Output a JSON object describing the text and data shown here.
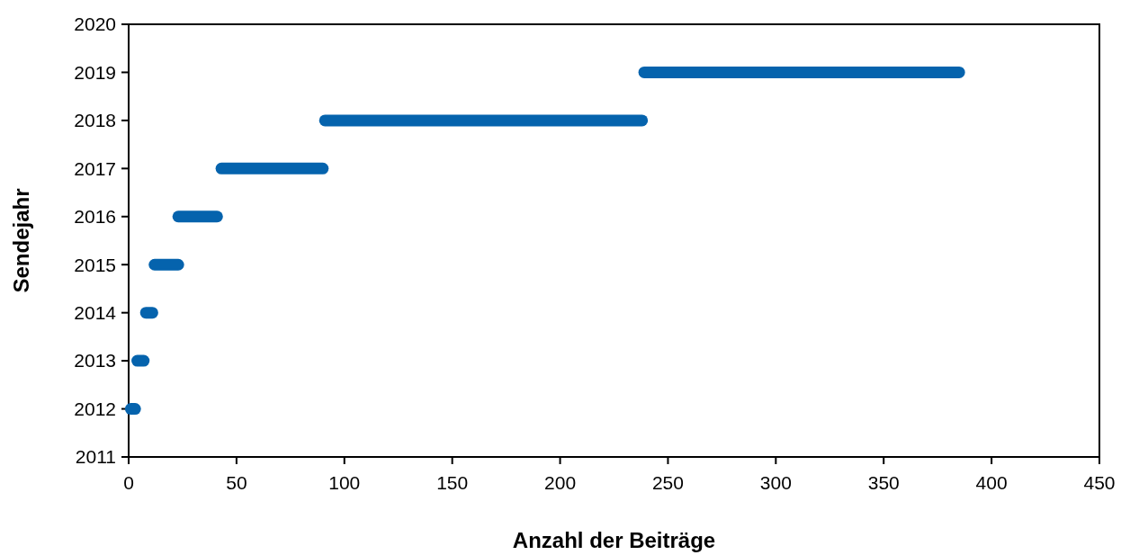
{
  "chart_data": {
    "type": "line",
    "xlabel": "Anzahl der Beiträge",
    "ylabel": "Sendejahr",
    "xlim": [
      0,
      450
    ],
    "xticks": [
      0,
      50,
      100,
      150,
      200,
      250,
      300,
      350,
      400,
      450
    ],
    "ylim": [
      2011,
      2020
    ],
    "yticks": [
      2011,
      2012,
      2013,
      2014,
      2015,
      2016,
      2017,
      2018,
      2019,
      2020
    ],
    "grid": false,
    "line_style": "solid",
    "series": [
      {
        "color": "#0563ad",
        "x": [
          1,
          3
        ],
        "values": [
          2012,
          2012
        ]
      },
      {
        "color": "#0563ad",
        "x": [
          4,
          7
        ],
        "values": [
          2013,
          2013
        ]
      },
      {
        "color": "#0563ad",
        "x": [
          8,
          11
        ],
        "values": [
          2014,
          2014
        ]
      },
      {
        "color": "#0563ad",
        "x": [
          12,
          23
        ],
        "values": [
          2015,
          2015
        ]
      },
      {
        "color": "#0563ad",
        "x": [
          23,
          41
        ],
        "values": [
          2016,
          2016
        ]
      },
      {
        "color": "#0563ad",
        "x": [
          43,
          90
        ],
        "values": [
          2017,
          2017
        ]
      },
      {
        "color": "#0563ad",
        "x": [
          91,
          238
        ],
        "values": [
          2018,
          2018
        ]
      },
      {
        "color": "#0563ad",
        "x": [
          239,
          385
        ],
        "values": [
          2019,
          2019
        ]
      }
    ]
  }
}
